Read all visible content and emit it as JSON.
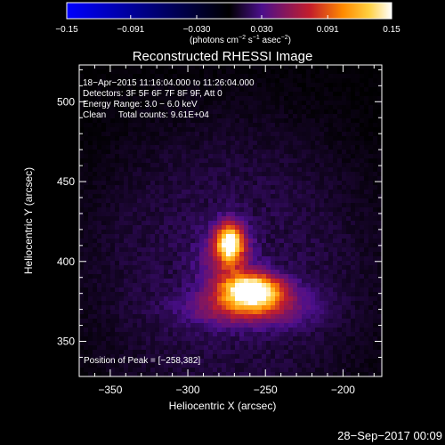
{
  "chart_data": {
    "type": "heatmap",
    "title": "Reconstructed RHESSI Image",
    "xlabel": "Heliocentric X (arcsec)",
    "ylabel": "Heliocentric Y (arcsec)",
    "xlim": [
      -370,
      -175
    ],
    "ylim": [
      328,
      523
    ],
    "x_ticks": [
      -350,
      -300,
      -250,
      -200
    ],
    "y_ticks": [
      350,
      400,
      450,
      500
    ],
    "x_tick_labels": [
      "−350",
      "−300",
      "−250",
      "−200"
    ],
    "y_tick_labels": [
      "350",
      "400",
      "450",
      "500"
    ],
    "colorbar": {
      "range": [
        -0.15,
        0.15
      ],
      "ticks": [
        -0.15,
        -0.091,
        -0.03,
        0.03,
        0.091,
        0.15
      ],
      "tick_labels": [
        "−0.15",
        "−0.091",
        "−0.030",
        "0.030",
        "0.091",
        "0.15"
      ],
      "unit_label_parts": [
        "(photons cm",
        "−2",
        " s",
        "−1",
        " asec",
        "−2",
        ")"
      ],
      "colors": [
        "#0000ff",
        "#000000",
        "#4b0f8c",
        "#c41e2a",
        "#ff8a00",
        "#ffd040",
        "#ffffff"
      ]
    },
    "info_lines": [
      "18−Apr−2015 11:16:04.000 to 11:26:04.000",
      "Detectors: 3F 5F 6F 7F 8F 9F, Att 0",
      "Energy Range: 3.0 − 6.0 keV",
      "Clean     Total counts: 9.61E+04"
    ],
    "peak_text": "Position of Peak = [−258,382]",
    "peak_position": [
      -258,
      382
    ],
    "sources": [
      {
        "x": -258,
        "y": 382,
        "peak": 0.15,
        "sx": 13,
        "sy": 7
      },
      {
        "x": -273,
        "y": 412,
        "peak": 0.13,
        "sx": 6,
        "sy": 8
      },
      {
        "x": -261,
        "y": 371,
        "peak": 0.06,
        "sx": 25,
        "sy": 8
      },
      {
        "x": -275,
        "y": 400,
        "peak": 0.05,
        "sx": 12,
        "sy": 14
      }
    ],
    "background_level": 0.012
  },
  "footer": {
    "date": "28−Sep−2017 00:09"
  }
}
